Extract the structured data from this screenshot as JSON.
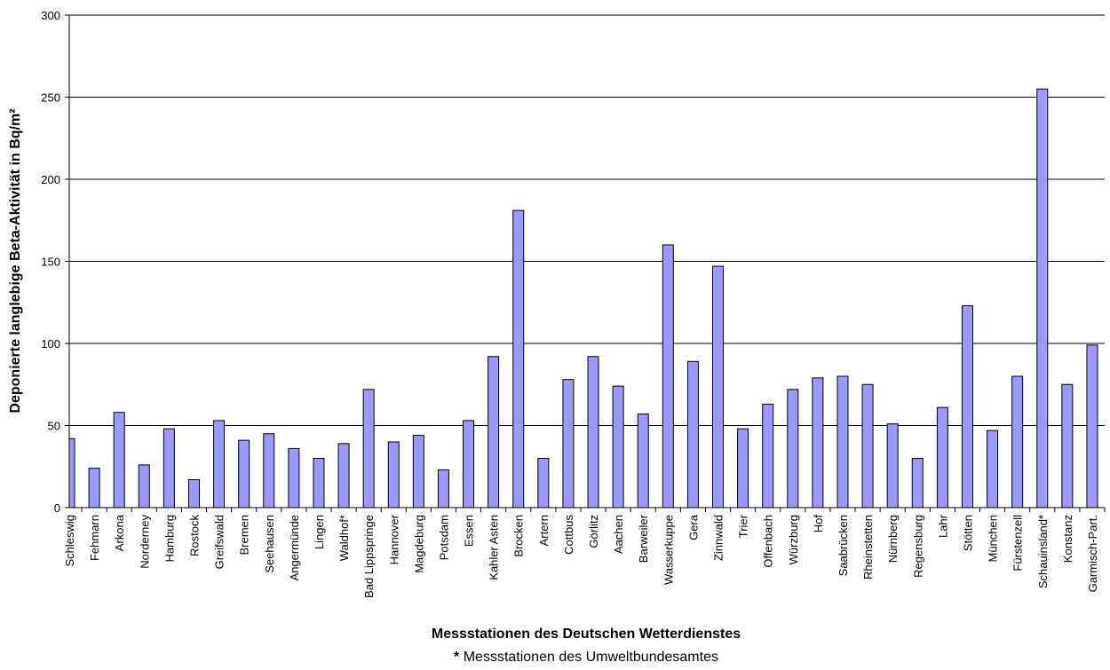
{
  "chart_data": {
    "type": "bar",
    "title": "",
    "ylabel": "Deponierte langlebige Beta-Aktivität in Bq/m²",
    "xlabel": "Messstationen des Deutschen Wetterdienstes",
    "footnote_star": "*",
    "footnote_text": " Messstationen des Umweltbundesamtes",
    "ylim": [
      0,
      300
    ],
    "yticks": [
      "0",
      "50",
      "100",
      "150",
      "200",
      "250",
      "300"
    ],
    "grid": true,
    "bar_color": "#9999ff",
    "categories": [
      "Schleswig",
      "Fehmarn",
      "Arkona",
      "Norderney",
      "Hamburg",
      "Rostock",
      "Greifswald",
      "Bremen",
      "Seehausen",
      "Angermünde",
      "Lingen",
      "Waldhof*",
      "Bad Lippspringe",
      "Hannover",
      "Magdeburg",
      "Potsdam",
      "Essen",
      "Kahler Asten",
      "Brocken",
      "Artern",
      "Cottbus",
      "Görlitz",
      "Aachen",
      "Barweiler",
      "Wasserkuppe",
      "Gera",
      "Zinnwald",
      "Trier",
      "Offenbach",
      "Würzburg",
      "Hof",
      "Saabrücken",
      "Rheinstetten",
      "Nürnberg",
      "Regensburg",
      "Lahr",
      "Stötten",
      "München",
      "Fürstenzell",
      "Schauinsland*",
      "Konstanz",
      "Garmisch-Part."
    ],
    "values": [
      42,
      24,
      58,
      26,
      48,
      17,
      53,
      41,
      45,
      36,
      30,
      39,
      72,
      40,
      44,
      23,
      53,
      92,
      181,
      30,
      78,
      92,
      74,
      57,
      160,
      89,
      147,
      48,
      63,
      72,
      79,
      80,
      75,
      51,
      30,
      61,
      123,
      47,
      80,
      255,
      75,
      99
    ]
  }
}
